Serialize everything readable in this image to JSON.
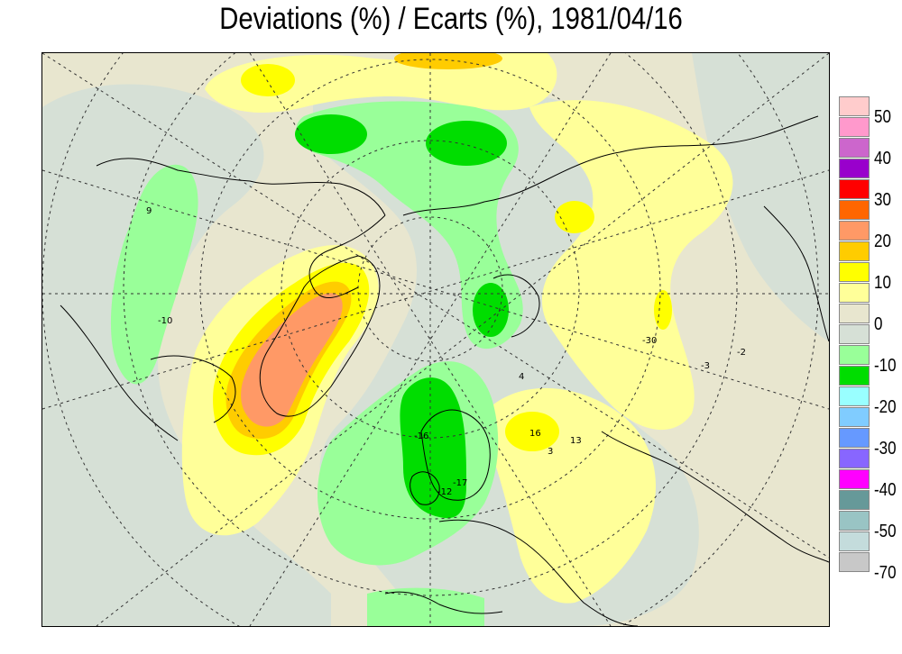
{
  "title": "Deviations (%) / Ecarts (%), 1981/04/16",
  "legend": {
    "colors": [
      "#ffcccc",
      "#ff99cc",
      "#cc66cc",
      "#9900cc",
      "#ff0000",
      "#ff6600",
      "#ff9966",
      "#ffcc00",
      "#ffff00",
      "#ffff99",
      "#e8e6cf",
      "#d6e0d6",
      "#99ff99",
      "#00dd00",
      "#99ffff",
      "#80ccff",
      "#6699ff",
      "#8866ff",
      "#ff00ff",
      "#669999",
      "#99c4c4",
      "#c4dcdc",
      "#c8c8c8"
    ],
    "labels": [
      "50",
      "40",
      "30",
      "20",
      "10",
      "0",
      "-10",
      "-20",
      "-30",
      "-40",
      "-50",
      "-70"
    ]
  },
  "map": {
    "contour_labels": [
      "9",
      "-10",
      "-16",
      "-17",
      "-12",
      "-30",
      "13",
      "-2",
      "-3",
      "4",
      "16",
      "3"
    ],
    "colors": {
      "background": "#e8e6cf",
      "neutral": "#d6e0d6",
      "light_green": "#99ff99",
      "green": "#00dd00",
      "light_yellow": "#ffff99",
      "yellow": "#ffff00",
      "orange": "#ffcc00",
      "salmon": "#ff9966"
    }
  }
}
